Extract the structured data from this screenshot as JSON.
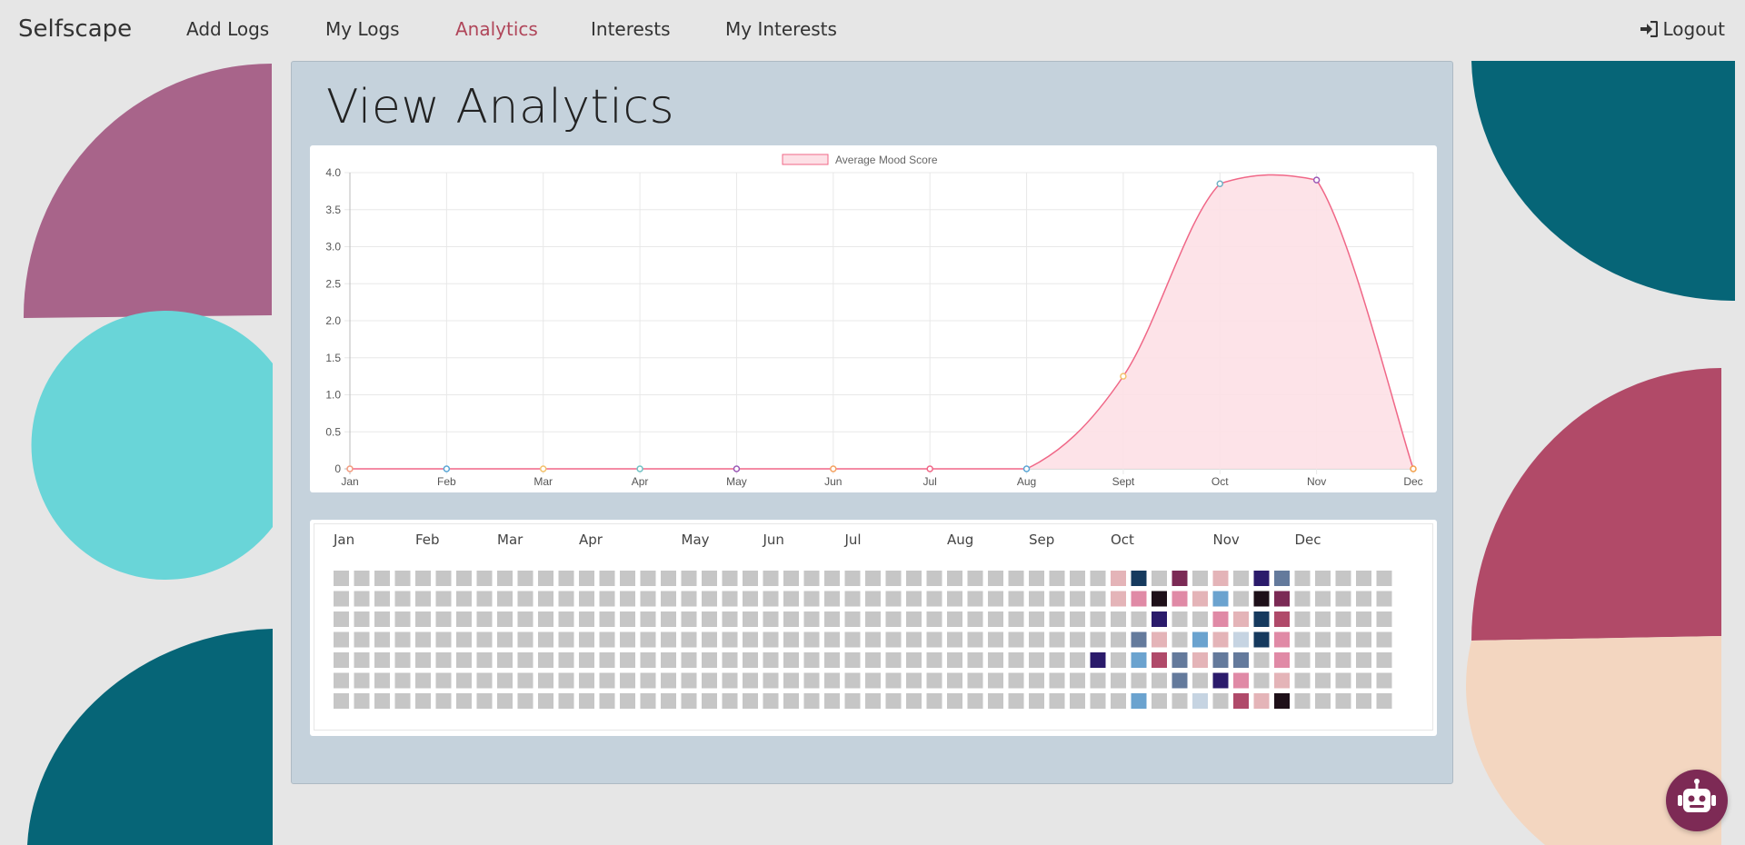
{
  "nav": {
    "brand": "Selfscape",
    "links": [
      "Add Logs",
      "My Logs",
      "Analytics",
      "Interests",
      "My Interests"
    ],
    "active": "Analytics",
    "logout": "Logout"
  },
  "page": {
    "title": "View Analytics"
  },
  "colors": {
    "accent": "#b0465a",
    "panel": "#c5d2dc",
    "empty_cell": "#c6c6c6",
    "line": "#f06787",
    "area_fill": "#fde0e6"
  },
  "chart_data": {
    "type": "area",
    "legend": "Average Mood Score",
    "categories": [
      "Jan",
      "Feb",
      "Mar",
      "Apr",
      "May",
      "Jun",
      "Jul",
      "Aug",
      "Sept",
      "Oct",
      "Nov",
      "Dec"
    ],
    "values": [
      0,
      0,
      0,
      0,
      0,
      0,
      0,
      0,
      1.25,
      3.85,
      3.9,
      0
    ],
    "point_colors": [
      "#f29a7d",
      "#5aa6d6",
      "#f3c16b",
      "#6fc2c4",
      "#9b59b6",
      "#f4a261",
      "#f06787",
      "#5aa6d6",
      "#f3c16b",
      "#6fb0c4",
      "#9b59b6",
      "#f3a04b"
    ],
    "ylim": [
      0,
      4
    ],
    "yticks": [
      "0",
      "0.5",
      "1.0",
      "1.5",
      "2.0",
      "2.5",
      "3.0",
      "3.5",
      "4.0"
    ],
    "grid": true,
    "legend_position": "top"
  },
  "heatmap": {
    "months": [
      "Jan",
      "Feb",
      "Mar",
      "Apr",
      "May",
      "Jun",
      "Jul",
      "Aug",
      "Sep",
      "Oct",
      "Nov",
      "Dec"
    ],
    "month_week_index": [
      0,
      4,
      8,
      12,
      17,
      21,
      25,
      30,
      34,
      38,
      43,
      47
    ],
    "weeks": 52,
    "days": 7,
    "empty_color": "#c6c6c6",
    "filled": [
      {
        "week": 37,
        "day": 4,
        "color": "#2b1b6b"
      },
      {
        "week": 38,
        "day": 0,
        "color": "#e4b4b8"
      },
      {
        "week": 38,
        "day": 1,
        "color": "#e4b4b8"
      },
      {
        "week": 39,
        "day": 0,
        "color": "#163a5e"
      },
      {
        "week": 39,
        "day": 1,
        "color": "#e08aa6"
      },
      {
        "week": 39,
        "day": 3,
        "color": "#647a9c"
      },
      {
        "week": 39,
        "day": 4,
        "color": "#6ba3cf"
      },
      {
        "week": 39,
        "day": 6,
        "color": "#6ba3cf"
      },
      {
        "week": 40,
        "day": 1,
        "color": "#1e1019"
      },
      {
        "week": 40,
        "day": 2,
        "color": "#2b1b6b"
      },
      {
        "week": 40,
        "day": 3,
        "color": "#e4b4b8"
      },
      {
        "week": 40,
        "day": 4,
        "color": "#b04a6a"
      },
      {
        "week": 41,
        "day": 0,
        "color": "#7b2a55"
      },
      {
        "week": 41,
        "day": 1,
        "color": "#e08aa6"
      },
      {
        "week": 41,
        "day": 4,
        "color": "#647a9c"
      },
      {
        "week": 41,
        "day": 5,
        "color": "#647a9c"
      },
      {
        "week": 42,
        "day": 1,
        "color": "#e4b4b8"
      },
      {
        "week": 42,
        "day": 3,
        "color": "#6ba3cf"
      },
      {
        "week": 42,
        "day": 4,
        "color": "#e4b4b8"
      },
      {
        "week": 42,
        "day": 6,
        "color": "#c6d4e2"
      },
      {
        "week": 43,
        "day": 0,
        "color": "#e4b4b8"
      },
      {
        "week": 43,
        "day": 1,
        "color": "#6ba3cf"
      },
      {
        "week": 43,
        "day": 2,
        "color": "#e08aa6"
      },
      {
        "week": 43,
        "day": 3,
        "color": "#e4b4b8"
      },
      {
        "week": 43,
        "day": 4,
        "color": "#647a9c"
      },
      {
        "week": 43,
        "day": 5,
        "color": "#2b1b6b"
      },
      {
        "week": 44,
        "day": 2,
        "color": "#e4b4b8"
      },
      {
        "week": 44,
        "day": 3,
        "color": "#c6d4e2"
      },
      {
        "week": 44,
        "day": 4,
        "color": "#647a9c"
      },
      {
        "week": 44,
        "day": 5,
        "color": "#e08aa6"
      },
      {
        "week": 44,
        "day": 6,
        "color": "#b04a6a"
      },
      {
        "week": 45,
        "day": 0,
        "color": "#2b1b6b"
      },
      {
        "week": 45,
        "day": 1,
        "color": "#1e1019"
      },
      {
        "week": 45,
        "day": 2,
        "color": "#163a5e"
      },
      {
        "week": 45,
        "day": 3,
        "color": "#163a5e"
      },
      {
        "week": 45,
        "day": 6,
        "color": "#e4b4b8"
      },
      {
        "week": 46,
        "day": 0,
        "color": "#647a9c"
      },
      {
        "week": 46,
        "day": 1,
        "color": "#7b2a55"
      },
      {
        "week": 46,
        "day": 2,
        "color": "#b04a6a"
      },
      {
        "week": 46,
        "day": 3,
        "color": "#e08aa6"
      },
      {
        "week": 46,
        "day": 4,
        "color": "#e08aa6"
      },
      {
        "week": 46,
        "day": 5,
        "color": "#e4b4b8"
      },
      {
        "week": 46,
        "day": 6,
        "color": "#1e1019"
      }
    ]
  },
  "assistant": {
    "icon": "robot-icon"
  }
}
